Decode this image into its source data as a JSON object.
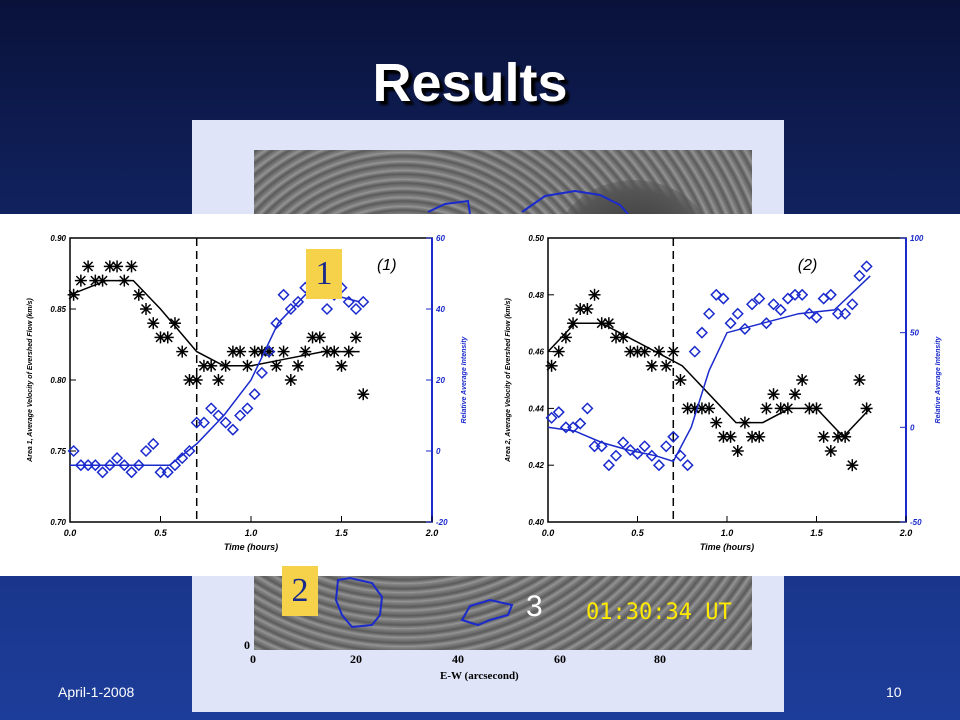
{
  "slide": {
    "title": "Results",
    "date": "April-1-2008",
    "page_number": "10"
  },
  "background_image": {
    "timestamp": "01:30:34 UT",
    "region_label": "3",
    "xlabel": "E-W (arcsecond)",
    "x_ticks": [
      "0",
      "20",
      "40",
      "60",
      "80"
    ],
    "y_tick_visible": "0"
  },
  "markers": [
    "1",
    "2"
  ],
  "chart_data": [
    {
      "type": "line",
      "panel_label": "(1)",
      "xlabel": "Time (hours)",
      "ylabel_left": "Area 1, Average Velocity of Evershed Flow (km/s)",
      "ylabel_right": "Relative Average Intensity",
      "xlim": [
        0.0,
        2.0
      ],
      "ylim_left": [
        0.7,
        0.9
      ],
      "ylim_right": [
        -20,
        60
      ],
      "x_ticks": [
        "0.0",
        "0.5",
        "1.0",
        "1.5",
        "2.0"
      ],
      "y_ticks_left": [
        "0.70",
        "0.75",
        "0.80",
        "0.85",
        "0.90"
      ],
      "y_ticks_right": [
        "-20",
        "0",
        "20",
        "40",
        "60"
      ],
      "vline_x": 0.7,
      "series": [
        {
          "color": "#000000",
          "marker": "asterisk",
          "x": [
            0.02,
            0.06,
            0.1,
            0.14,
            0.18,
            0.22,
            0.26,
            0.3,
            0.34,
            0.38,
            0.42,
            0.46,
            0.5,
            0.54,
            0.58,
            0.62,
            0.66,
            0.7,
            0.74,
            0.78,
            0.82,
            0.86,
            0.9,
            0.94,
            0.98,
            1.02,
            1.06,
            1.1,
            1.14,
            1.18,
            1.22,
            1.26,
            1.3,
            1.34,
            1.38,
            1.42,
            1.46,
            1.5,
            1.54,
            1.58,
            1.62
          ],
          "y": [
            0.86,
            0.87,
            0.88,
            0.87,
            0.87,
            0.88,
            0.88,
            0.87,
            0.88,
            0.86,
            0.85,
            0.84,
            0.83,
            0.83,
            0.84,
            0.82,
            0.8,
            0.8,
            0.81,
            0.81,
            0.8,
            0.81,
            0.82,
            0.82,
            0.81,
            0.82,
            0.82,
            0.82,
            0.81,
            0.82,
            0.8,
            0.81,
            0.82,
            0.83,
            0.83,
            0.82,
            0.82,
            0.81,
            0.82,
            0.83,
            0.79
          ]
        },
        {
          "color": "#000000",
          "marker": "line-fit",
          "x": [
            0.0,
            0.2,
            0.35,
            0.5,
            0.7,
            0.85,
            1.0,
            1.2,
            1.4,
            1.6
          ],
          "y": [
            0.86,
            0.87,
            0.87,
            0.85,
            0.82,
            0.81,
            0.81,
            0.815,
            0.82,
            0.82
          ]
        },
        {
          "color": "#1a2acc",
          "marker": "diamond",
          "axis": "right",
          "x": [
            0.02,
            0.06,
            0.1,
            0.14,
            0.18,
            0.22,
            0.26,
            0.3,
            0.34,
            0.38,
            0.42,
            0.46,
            0.5,
            0.54,
            0.58,
            0.62,
            0.66,
            0.7,
            0.74,
            0.78,
            0.82,
            0.86,
            0.9,
            0.94,
            0.98,
            1.02,
            1.06,
            1.1,
            1.14,
            1.18,
            1.22,
            1.26,
            1.3,
            1.34,
            1.38,
            1.42,
            1.46,
            1.5,
            1.54,
            1.58,
            1.62
          ],
          "y": [
            0,
            -4,
            -4,
            -4,
            -6,
            -4,
            -2,
            -4,
            -6,
            -4,
            0,
            2,
            -6,
            -6,
            -4,
            -2,
            0,
            8,
            8,
            12,
            10,
            8,
            6,
            10,
            12,
            16,
            22,
            28,
            36,
            44,
            40,
            42,
            46,
            48,
            50,
            40,
            44,
            46,
            42,
            40,
            42
          ]
        },
        {
          "color": "#1a2acc",
          "marker": "line-fit",
          "axis": "right",
          "x": [
            0.0,
            0.3,
            0.55,
            0.7,
            0.85,
            1.0,
            1.15,
            1.3,
            1.45,
            1.6
          ],
          "y": [
            -4,
            -4,
            -4,
            2,
            10,
            20,
            36,
            44,
            44,
            42
          ]
        }
      ]
    },
    {
      "type": "line",
      "panel_label": "(2)",
      "xlabel": "Time (hours)",
      "ylabel_left": "Area 2, Average Velocity of Evershed Flow (km/s)",
      "ylabel_right": "Relative Average Intensity",
      "xlim": [
        0.0,
        2.0
      ],
      "ylim_left": [
        0.4,
        0.5
      ],
      "ylim_right": [
        -50,
        100
      ],
      "x_ticks": [
        "0.0",
        "0.5",
        "1.0",
        "1.5",
        "2.0"
      ],
      "y_ticks_left": [
        "0.40",
        "0.42",
        "0.44",
        "0.46",
        "0.48",
        "0.50"
      ],
      "y_ticks_right": [
        "-50",
        "0",
        "50",
        "100"
      ],
      "vline_x": 0.7,
      "series": [
        {
          "color": "#000000",
          "marker": "asterisk",
          "x": [
            0.02,
            0.06,
            0.1,
            0.14,
            0.18,
            0.22,
            0.26,
            0.3,
            0.34,
            0.38,
            0.42,
            0.46,
            0.5,
            0.54,
            0.58,
            0.62,
            0.66,
            0.7,
            0.74,
            0.78,
            0.82,
            0.86,
            0.9,
            0.94,
            0.98,
            1.02,
            1.06,
            1.1,
            1.14,
            1.18,
            1.22,
            1.26,
            1.3,
            1.34,
            1.38,
            1.42,
            1.46,
            1.5,
            1.54,
            1.58,
            1.62,
            1.66,
            1.7,
            1.74,
            1.78
          ],
          "y": [
            0.455,
            0.46,
            0.465,
            0.47,
            0.475,
            0.475,
            0.48,
            0.47,
            0.47,
            0.465,
            0.465,
            0.46,
            0.46,
            0.46,
            0.455,
            0.46,
            0.455,
            0.46,
            0.45,
            0.44,
            0.44,
            0.44,
            0.44,
            0.435,
            0.43,
            0.43,
            0.425,
            0.435,
            0.43,
            0.43,
            0.44,
            0.445,
            0.44,
            0.44,
            0.445,
            0.45,
            0.44,
            0.44,
            0.43,
            0.425,
            0.43,
            0.43,
            0.42,
            0.45,
            0.44
          ]
        },
        {
          "color": "#000000",
          "marker": "line-fit",
          "x": [
            0.0,
            0.15,
            0.3,
            0.45,
            0.6,
            0.75,
            0.9,
            1.05,
            1.2,
            1.35,
            1.5,
            1.65,
            1.8
          ],
          "y": [
            0.46,
            0.47,
            0.47,
            0.465,
            0.46,
            0.455,
            0.445,
            0.435,
            0.435,
            0.44,
            0.44,
            0.43,
            0.44
          ]
        },
        {
          "color": "#1a2acc",
          "marker": "diamond",
          "axis": "right",
          "x": [
            0.02,
            0.06,
            0.1,
            0.14,
            0.18,
            0.22,
            0.26,
            0.3,
            0.34,
            0.38,
            0.42,
            0.46,
            0.5,
            0.54,
            0.58,
            0.62,
            0.66,
            0.7,
            0.74,
            0.78,
            0.82,
            0.86,
            0.9,
            0.94,
            0.98,
            1.02,
            1.06,
            1.1,
            1.14,
            1.18,
            1.22,
            1.26,
            1.3,
            1.34,
            1.38,
            1.42,
            1.46,
            1.5,
            1.54,
            1.58,
            1.62,
            1.66,
            1.7,
            1.74,
            1.78
          ],
          "y": [
            5,
            8,
            0,
            0,
            2,
            10,
            -10,
            -10,
            -20,
            -15,
            -8,
            -12,
            -14,
            -10,
            -15,
            -20,
            -10,
            -5,
            -15,
            -20,
            40,
            50,
            60,
            70,
            68,
            55,
            60,
            52,
            65,
            68,
            55,
            65,
            62,
            68,
            70,
            70,
            60,
            58,
            68,
            70,
            60,
            60,
            65,
            80,
            85
          ]
        },
        {
          "color": "#1a2acc",
          "marker": "line-fit",
          "axis": "right",
          "x": [
            0.0,
            0.15,
            0.3,
            0.45,
            0.6,
            0.7,
            0.8,
            0.9,
            1.0,
            1.2,
            1.4,
            1.6,
            1.8
          ],
          "y": [
            0,
            -2,
            -8,
            -12,
            -15,
            -18,
            0,
            30,
            50,
            55,
            60,
            62,
            80
          ]
        }
      ]
    }
  ]
}
